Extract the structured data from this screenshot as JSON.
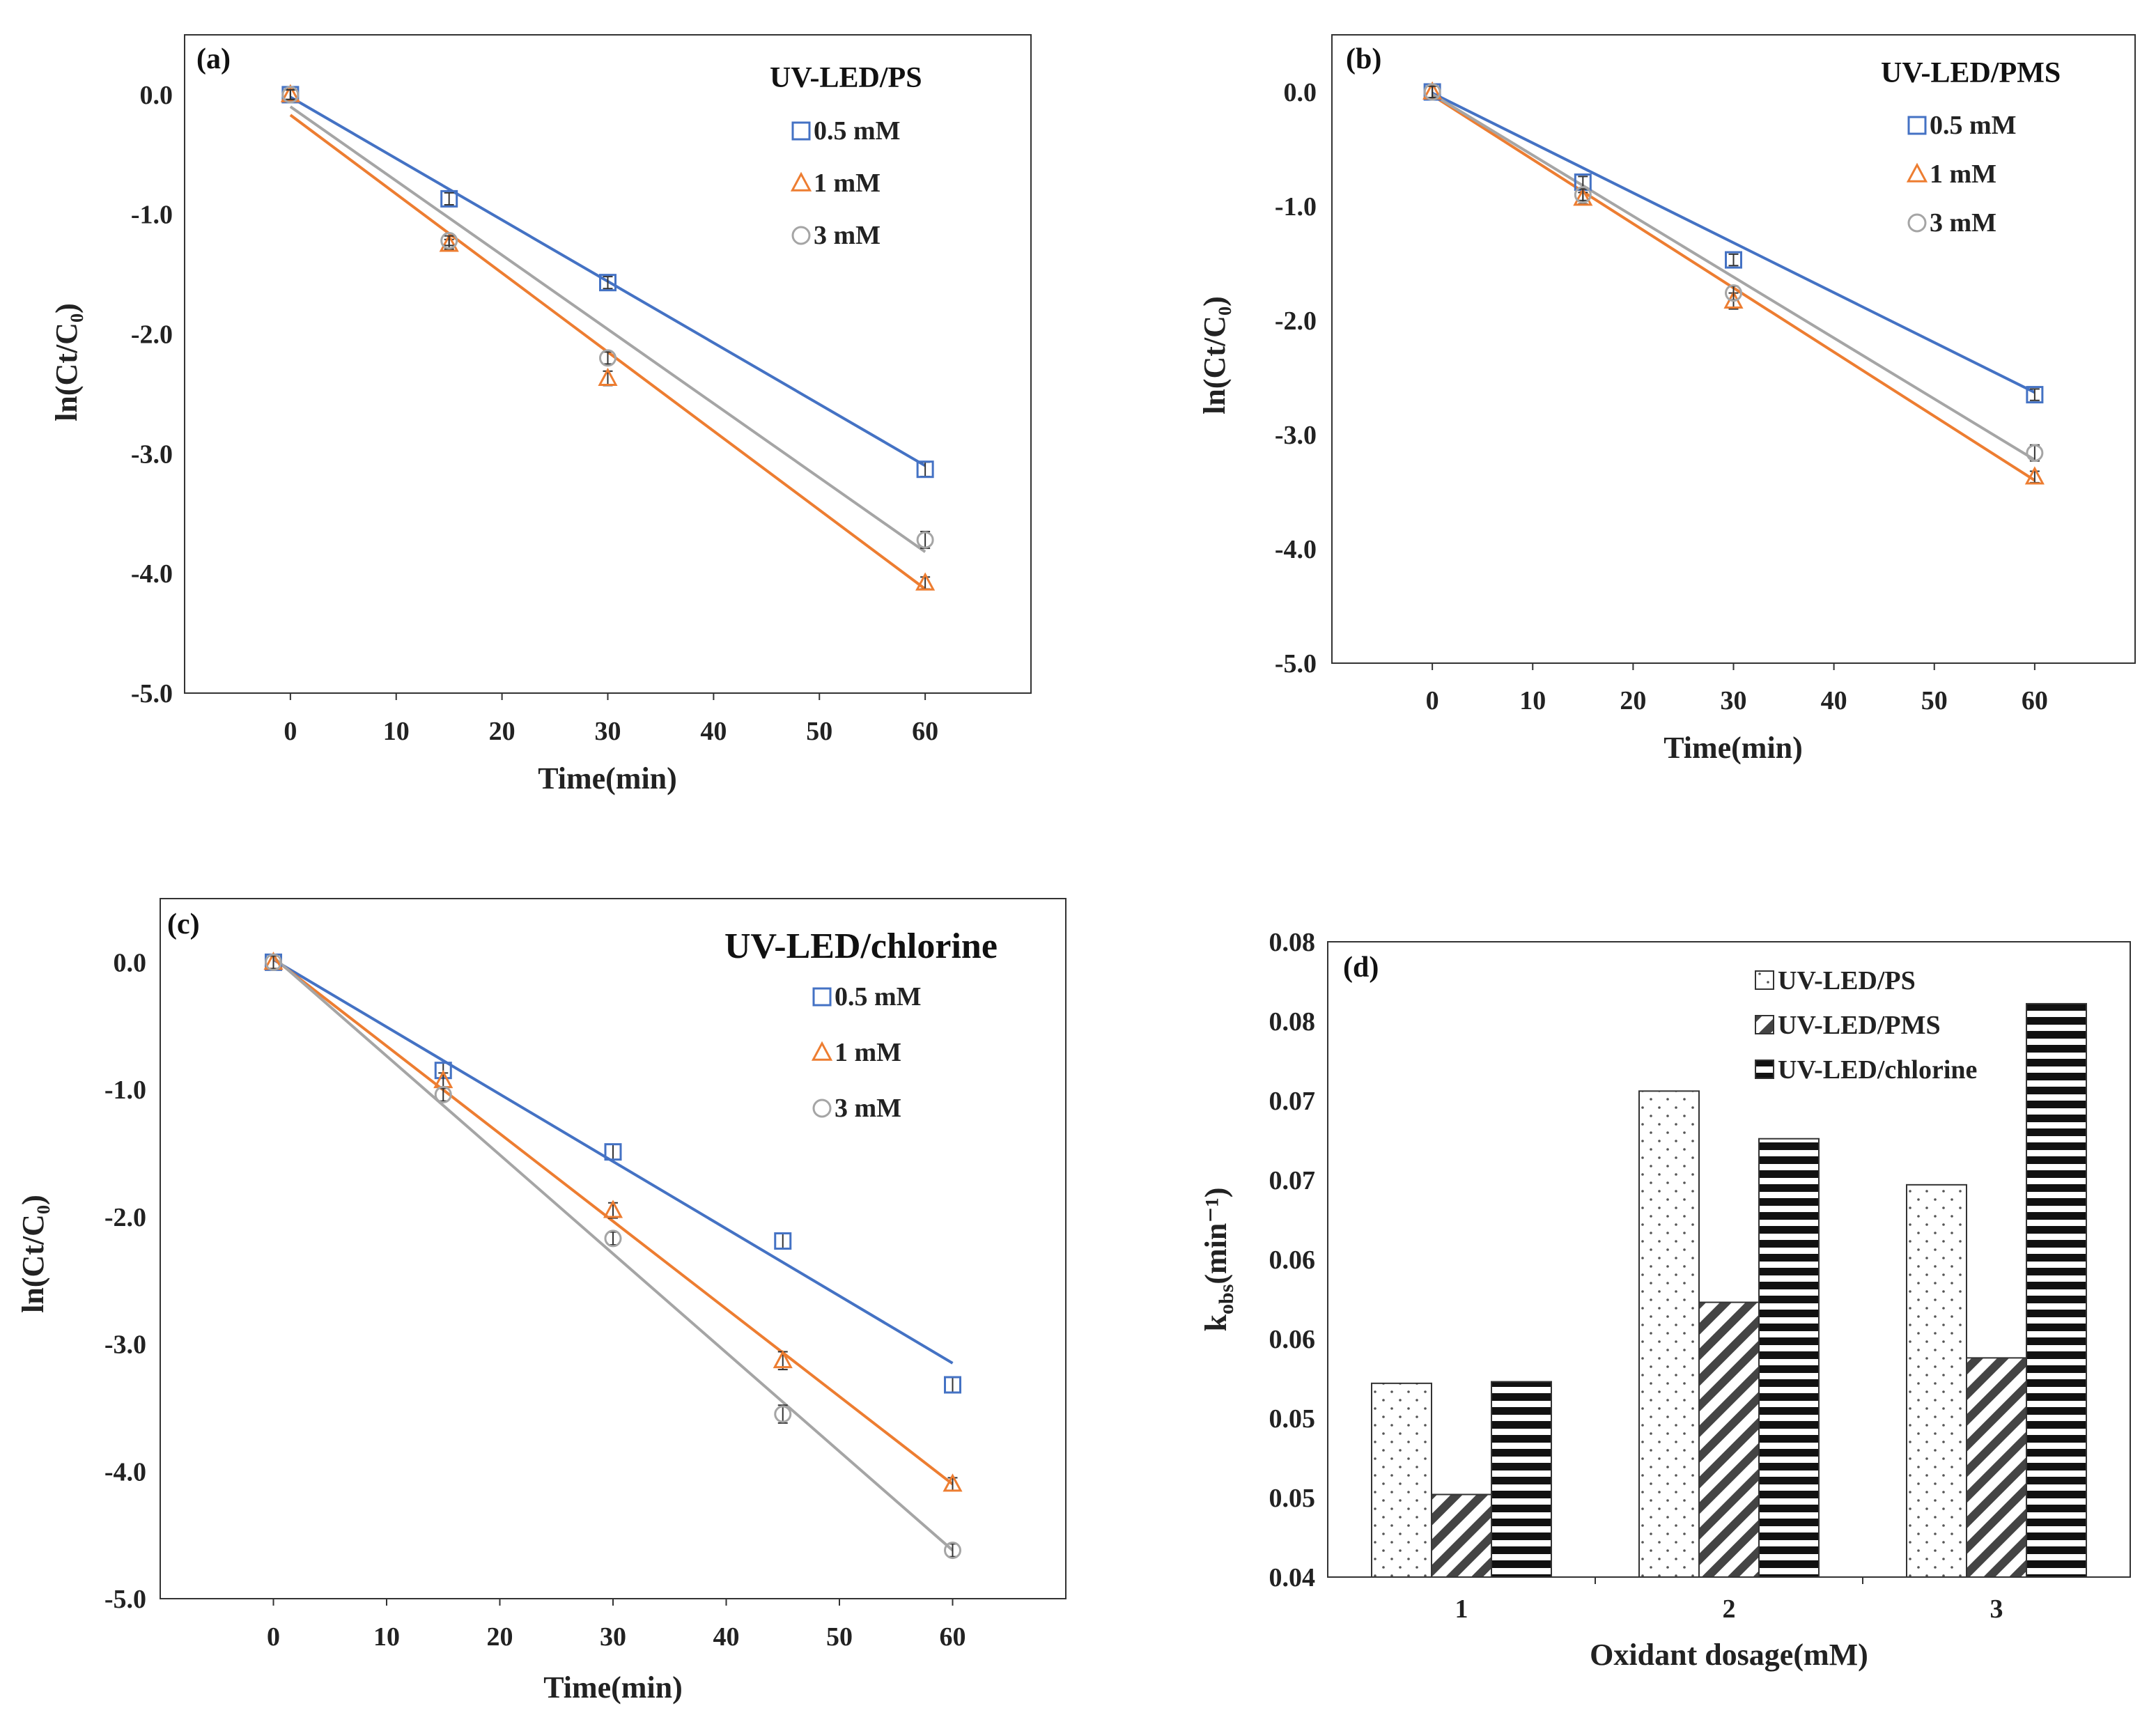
{
  "colors": {
    "s05": "#4472C4",
    "s1": "#ED7D31",
    "s3": "#A5A5A5",
    "axis": "#333333"
  },
  "chart_data": [
    {
      "id": "a",
      "type": "scatter",
      "panel_label": "(a)",
      "title": "UV-LED/PS",
      "xlabel": "Time(min)",
      "ylabel": "ln(Ct/C₀)",
      "xlim": [
        -10,
        70
      ],
      "ylim": [
        -5.0,
        0.5
      ],
      "xticks": [
        0,
        10,
        20,
        30,
        40,
        50,
        60
      ],
      "yticks": [
        0.0,
        -1.0,
        -2.0,
        -3.0,
        -4.0,
        -5.0
      ],
      "ytick_labels": [
        "0.0",
        "-1.0",
        "-2.0",
        "-3.0",
        "-4.0",
        "-5.0"
      ],
      "series": [
        {
          "name": "0.5 mM",
          "marker": "square",
          "color": "#4472C4",
          "x": [
            0,
            15,
            30,
            60
          ],
          "y": [
            0.0,
            -0.87,
            -1.57,
            -3.13
          ],
          "err": [
            0.05,
            0.05,
            0.05,
            0.06
          ],
          "fit": [
            [
              0,
              -0.02
            ],
            [
              60,
              -3.1
            ]
          ]
        },
        {
          "name": "1 mM",
          "marker": "triangle",
          "color": "#ED7D31",
          "x": [
            0,
            15,
            30,
            60
          ],
          "y": [
            0.0,
            -1.25,
            -2.37,
            -4.08
          ],
          "err": [
            0.04,
            0.04,
            0.06,
            0.05
          ],
          "fit": [
            [
              0,
              -0.17
            ],
            [
              60,
              -4.13
            ]
          ]
        },
        {
          "name": "3 mM",
          "marker": "circle",
          "color": "#A5A5A5",
          "x": [
            0,
            15,
            30,
            60
          ],
          "y": [
            0.0,
            -1.22,
            -2.2,
            -3.72
          ],
          "err": [
            0.04,
            0.04,
            0.05,
            0.07
          ],
          "fit": [
            [
              0,
              -0.1
            ],
            [
              60,
              -3.82
            ]
          ]
        }
      ]
    },
    {
      "id": "b",
      "type": "scatter",
      "panel_label": "(b)",
      "title": "UV-LED/PMS",
      "xlabel": "Time(min)",
      "ylabel": "ln(Ct/C₀)",
      "xlim": [
        -10,
        70
      ],
      "ylim": [
        -5.0,
        0.5
      ],
      "xticks": [
        0,
        10,
        20,
        30,
        40,
        50,
        60
      ],
      "yticks": [
        0.0,
        -1.0,
        -2.0,
        -3.0,
        -4.0,
        -5.0
      ],
      "ytick_labels": [
        "0.0",
        "-1.0",
        "-2.0",
        "-3.0",
        "-4.0",
        "-5.0"
      ],
      "series": [
        {
          "name": "0.5 mM",
          "marker": "square",
          "color": "#4472C4",
          "x": [
            0,
            15,
            30,
            60
          ],
          "y": [
            0.0,
            -0.79,
            -1.47,
            -2.65
          ],
          "err": [
            0.05,
            0.05,
            0.05,
            0.05
          ],
          "fit": [
            [
              0,
              -0.01
            ],
            [
              60,
              -2.63
            ]
          ]
        },
        {
          "name": "1 mM",
          "marker": "triangle",
          "color": "#ED7D31",
          "x": [
            0,
            15,
            30,
            60
          ],
          "y": [
            0.0,
            -0.93,
            -1.83,
            -3.37
          ],
          "err": [
            0.05,
            0.05,
            0.07,
            0.05
          ],
          "fit": [
            [
              0,
              -0.03
            ],
            [
              60,
              -3.4
            ]
          ]
        },
        {
          "name": "3 mM",
          "marker": "circle",
          "color": "#A5A5A5",
          "x": [
            0,
            15,
            30,
            60
          ],
          "y": [
            0.0,
            -0.9,
            -1.76,
            -3.16
          ],
          "err": [
            0.05,
            0.05,
            0.06,
            0.07
          ],
          "fit": [
            [
              0,
              -0.02
            ],
            [
              60,
              -3.22
            ]
          ]
        }
      ]
    },
    {
      "id": "c",
      "type": "scatter",
      "panel_label": "(c)",
      "title": "UV-LED/chlorine",
      "xlabel": "Time(min)",
      "ylabel": "ln(Ct/C₀)",
      "xlim": [
        -10,
        70
      ],
      "ylim": [
        -5.0,
        0.5
      ],
      "xticks": [
        0,
        10,
        20,
        30,
        40,
        50,
        60
      ],
      "yticks": [
        0.0,
        -1.0,
        -2.0,
        -3.0,
        -4.0,
        -5.0
      ],
      "ytick_labels": [
        "0.0",
        "-1.0",
        "-2.0",
        "-3.0",
        "-4.0",
        "-5.0"
      ],
      "series": [
        {
          "name": "0.5 mM",
          "marker": "square",
          "color": "#4472C4",
          "x": [
            0,
            15,
            30,
            45,
            60
          ],
          "y": [
            0.0,
            -0.85,
            -1.49,
            -2.19,
            -3.32
          ],
          "err": [
            0.05,
            0.06,
            0.06,
            0.06,
            0.06
          ],
          "fit": [
            [
              0,
              0.02
            ],
            [
              60,
              -3.15
            ]
          ]
        },
        {
          "name": "1 mM",
          "marker": "triangle",
          "color": "#ED7D31",
          "x": [
            0,
            15,
            30,
            45,
            60
          ],
          "y": [
            0.0,
            -0.93,
            -1.95,
            -3.13,
            -4.1
          ],
          "err": [
            0.05,
            0.06,
            0.06,
            0.07,
            0.05
          ],
          "fit": [
            [
              0,
              0.03
            ],
            [
              60,
              -4.1
            ]
          ]
        },
        {
          "name": "3 mM",
          "marker": "circle",
          "color": "#A5A5A5",
          "x": [
            0,
            15,
            30,
            45,
            60
          ],
          "y": [
            0.0,
            -1.04,
            -2.17,
            -3.55,
            -4.62
          ],
          "err": [
            0.05,
            0.05,
            0.05,
            0.07,
            0.05
          ],
          "fit": [
            [
              0,
              0.04
            ],
            [
              60,
              -4.62
            ]
          ]
        }
      ]
    },
    {
      "id": "d",
      "type": "bar",
      "panel_label": "(d)",
      "xlabel": "Oxidant dosage(mM)",
      "ylabel_main": "k",
      "ylabel_sub": "obs",
      "ylabel_tail": "(min⁻¹)",
      "categories": [
        "1",
        "2",
        "3"
      ],
      "ylim": [
        0.04,
        0.08
      ],
      "yticks": [
        0.04,
        0.045,
        0.05,
        0.055,
        0.06,
        0.065,
        0.07,
        0.075,
        0.08
      ],
      "ytick_labels": [
        "0.04",
        "0.05",
        "0.05",
        "0.06",
        "0.06",
        "0.07",
        "0.07",
        "0.08",
        "0.08"
      ],
      "series": [
        {
          "name": "UV-LED/PS",
          "pattern": "dots",
          "values": [
            0.0522,
            0.0706,
            0.0647
          ]
        },
        {
          "name": "UV-LED/PMS",
          "pattern": "diag",
          "values": [
            0.0452,
            0.0573,
            0.0538
          ]
        },
        {
          "name": "UV-LED/chlorine",
          "pattern": "hlines",
          "values": [
            0.0523,
            0.0676,
            0.0761
          ]
        }
      ]
    }
  ]
}
